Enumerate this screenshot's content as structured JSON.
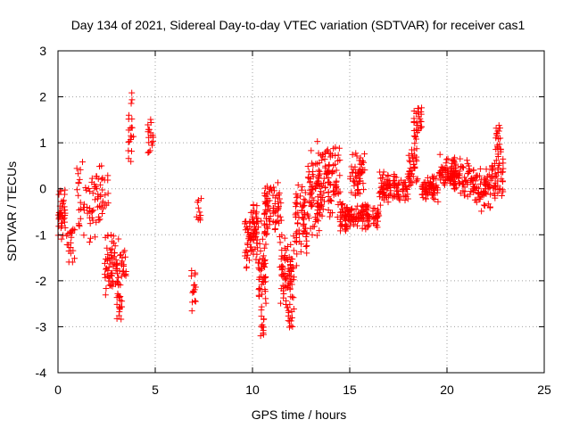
{
  "chart_data": {
    "type": "scatter",
    "title": "Day 134 of 2021, Sidereal Day-to-day VTEC variation (SDTVAR) for receiver cas1",
    "xlabel": "GPS time / hours",
    "ylabel": "SDTVAR / TECUs",
    "xlim": [
      0,
      25
    ],
    "ylim": [
      -4,
      3
    ],
    "xticks": [
      0,
      5,
      10,
      15,
      20,
      25
    ],
    "yticks": [
      -4,
      -3,
      -2,
      -1,
      0,
      1,
      2,
      3
    ],
    "grid": true,
    "marker": "+",
    "color": "#ff0000",
    "segments": [
      {
        "x0": 0.0,
        "x1": 0.4,
        "mid": -0.5,
        "spread": 0.6,
        "n": 40
      },
      {
        "x0": 0.4,
        "x1": 0.9,
        "mid": -1.2,
        "spread": 0.5,
        "n": 20
      },
      {
        "x0": 0.9,
        "x1": 2.0,
        "mid": -0.3,
        "spread": 0.9,
        "n": 50
      },
      {
        "x0": 2.0,
        "x1": 2.6,
        "mid": -0.1,
        "spread": 0.8,
        "n": 30
      },
      {
        "x0": 2.4,
        "x1": 3.5,
        "mid": -1.7,
        "spread": 0.8,
        "n": 90
      },
      {
        "x0": 3.0,
        "x1": 3.3,
        "mid": -2.6,
        "spread": 0.3,
        "n": 12
      },
      {
        "x0": 3.6,
        "x1": 3.9,
        "mid": 1.3,
        "spread": 0.8,
        "n": 20
      },
      {
        "x0": 4.6,
        "x1": 4.9,
        "mid": 1.2,
        "spread": 0.6,
        "n": 18
      },
      {
        "x0": 6.8,
        "x1": 7.1,
        "mid": -2.1,
        "spread": 0.6,
        "n": 15
      },
      {
        "x0": 7.1,
        "x1": 7.4,
        "mid": -0.5,
        "spread": 0.4,
        "n": 10
      },
      {
        "x0": 9.6,
        "x1": 10.3,
        "mid": -1.0,
        "spread": 0.8,
        "n": 80
      },
      {
        "x0": 10.3,
        "x1": 10.7,
        "mid": -1.6,
        "spread": 1.2,
        "n": 50
      },
      {
        "x0": 10.4,
        "x1": 10.6,
        "mid": -3.0,
        "spread": 0.5,
        "n": 12
      },
      {
        "x0": 10.6,
        "x1": 11.5,
        "mid": -0.4,
        "spread": 0.7,
        "n": 70
      },
      {
        "x0": 11.4,
        "x1": 12.2,
        "mid": -1.9,
        "spread": 1.0,
        "n": 80
      },
      {
        "x0": 11.8,
        "x1": 12.1,
        "mid": -2.8,
        "spread": 0.3,
        "n": 12
      },
      {
        "x0": 12.2,
        "x1": 12.8,
        "mid": -0.8,
        "spread": 1.1,
        "n": 60
      },
      {
        "x0": 12.8,
        "x1": 13.6,
        "mid": 0.0,
        "spread": 1.1,
        "n": 90
      },
      {
        "x0": 13.6,
        "x1": 14.5,
        "mid": 0.2,
        "spread": 0.9,
        "n": 80
      },
      {
        "x0": 14.5,
        "x1": 15.2,
        "mid": -0.6,
        "spread": 0.4,
        "n": 60
      },
      {
        "x0": 15.0,
        "x1": 15.8,
        "mid": 0.3,
        "spread": 0.6,
        "n": 50
      },
      {
        "x0": 15.2,
        "x1": 16.5,
        "mid": -0.6,
        "spread": 0.3,
        "n": 80
      },
      {
        "x0": 16.5,
        "x1": 18.0,
        "mid": 0.0,
        "spread": 0.4,
        "n": 100
      },
      {
        "x0": 18.0,
        "x1": 18.5,
        "mid": 0.5,
        "spread": 0.6,
        "n": 40
      },
      {
        "x0": 18.3,
        "x1": 18.7,
        "mid": 1.4,
        "spread": 0.5,
        "n": 30
      },
      {
        "x0": 18.7,
        "x1": 19.6,
        "mid": 0.0,
        "spread": 0.3,
        "n": 70
      },
      {
        "x0": 19.6,
        "x1": 20.5,
        "mid": 0.4,
        "spread": 0.4,
        "n": 70
      },
      {
        "x0": 20.3,
        "x1": 21.3,
        "mid": 0.2,
        "spread": 0.5,
        "n": 60
      },
      {
        "x0": 21.3,
        "x1": 22.3,
        "mid": 0.0,
        "spread": 0.5,
        "n": 70
      },
      {
        "x0": 22.3,
        "x1": 22.9,
        "mid": 0.3,
        "spread": 0.7,
        "n": 50
      },
      {
        "x0": 22.5,
        "x1": 22.8,
        "mid": 1.1,
        "spread": 0.4,
        "n": 15
      }
    ]
  }
}
